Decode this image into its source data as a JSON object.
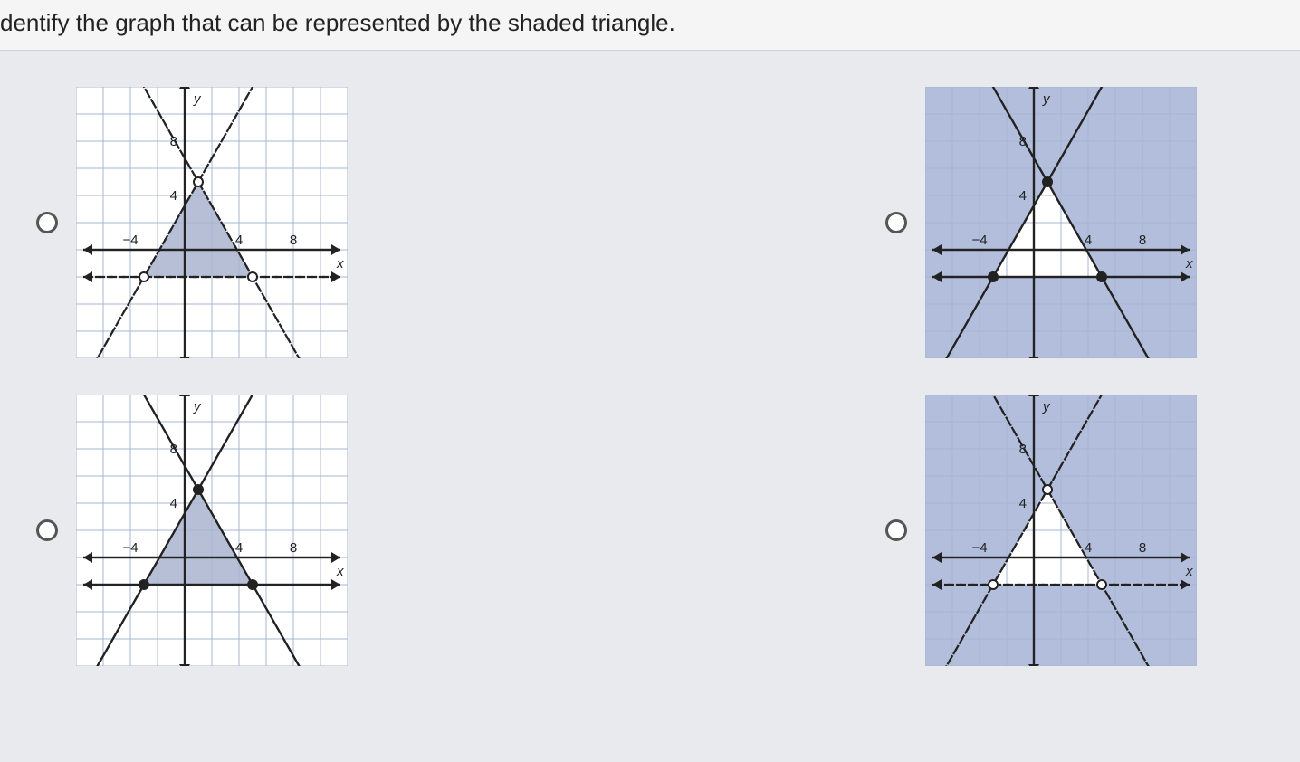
{
  "question": "dentify the graph that can be represented by the shaded triangle.",
  "axes": {
    "x_label": "x",
    "y_label": "y",
    "x_ticks": [
      -4,
      4,
      8
    ],
    "y_ticks": [
      4,
      8
    ],
    "xlim": [
      -8,
      12
    ],
    "ylim": [
      -8,
      12
    ],
    "grid_step": 2,
    "grid_color": "#a7b6d1",
    "axis_color": "#222222",
    "tick_fontsize": 15,
    "label_fontsize": 15,
    "background_white": "#ffffff",
    "background_blue": "#b3bddc"
  },
  "triangle": {
    "apex": [
      1,
      5
    ],
    "base_y": -2,
    "base_left_x": -3,
    "base_right_x": 5,
    "fill_color": "#a9b4cf",
    "fill_opacity": 0.85
  },
  "lines": {
    "left": {
      "through": [
        [
          1,
          5
        ],
        [
          -3,
          -2
        ]
      ],
      "color": "#222",
      "width": 2
    },
    "right": {
      "through": [
        [
          1,
          5
        ],
        [
          5,
          -2
        ]
      ],
      "color": "#222",
      "width": 2
    },
    "base": {
      "y": -2,
      "color": "#222",
      "width": 2
    }
  },
  "choices": [
    {
      "id": "A",
      "background": "white",
      "triangle_shaded": true,
      "base_dashed": true,
      "sides_dashed": true,
      "shade_outside": false,
      "open_vertices": true
    },
    {
      "id": "B",
      "background": "blue",
      "triangle_shaded": false,
      "base_dashed": false,
      "sides_dashed": false,
      "shade_outside": true,
      "open_vertices": false
    },
    {
      "id": "C",
      "background": "white",
      "triangle_shaded": true,
      "base_dashed": false,
      "sides_dashed": false,
      "shade_outside": false,
      "open_vertices": false
    },
    {
      "id": "D",
      "background": "blue",
      "triangle_shaded": false,
      "base_dashed": true,
      "sides_dashed": true,
      "shade_outside": true,
      "open_vertices": true
    }
  ],
  "colors": {
    "page_bg": "#e8eaed",
    "text": "#222222"
  }
}
